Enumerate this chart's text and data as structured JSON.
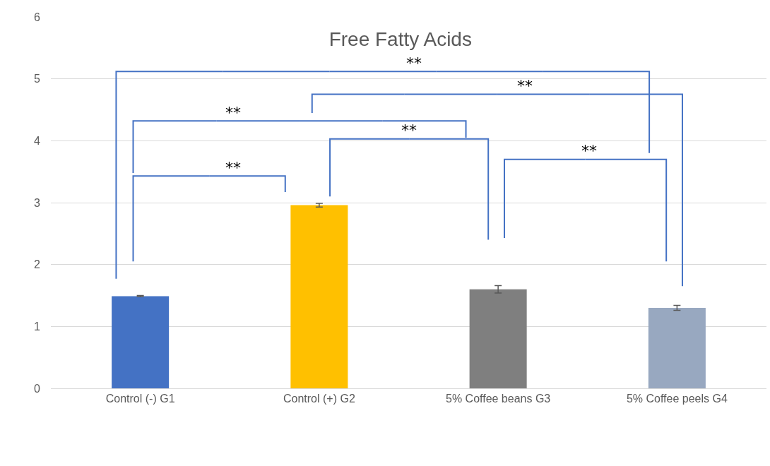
{
  "chart_data": {
    "type": "bar",
    "title": "Free Fatty Acids",
    "categories": [
      "Control (-) G1",
      "Control (+) G2",
      "5% Coffee beans G3",
      "5% Coffee peels G4"
    ],
    "values": [
      1.49,
      2.96,
      1.6,
      1.3
    ],
    "errors": [
      0.01,
      0.03,
      0.06,
      0.04
    ],
    "colors": [
      "#4472c4",
      "#ffc000",
      "#7f7f7f",
      "#98a8c0"
    ],
    "ylim": [
      0,
      6
    ],
    "yticks": [
      0,
      1,
      2,
      3,
      4,
      5,
      6
    ],
    "grid": "y",
    "annotations": [
      "**",
      "**",
      "**",
      "**",
      "**",
      "**"
    ]
  }
}
